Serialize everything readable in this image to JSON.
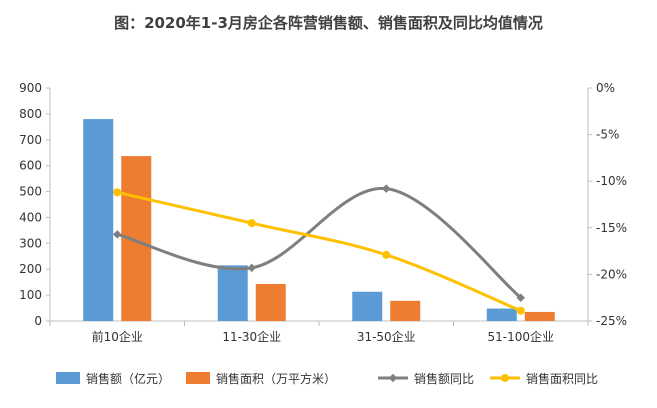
{
  "chart_data": {
    "type": "bar",
    "title": "图：2020年1-3月房企各阵营销售额、销售面积及同比均值情况",
    "categories": [
      "前10企业",
      "11-30企业",
      "31-50企业",
      "51-100企业"
    ],
    "series": [
      {
        "name": "销售额（亿元）",
        "type": "bar",
        "axis": "left",
        "color": "#5B9BD5",
        "values": [
          780,
          215,
          113,
          48
        ]
      },
      {
        "name": "销售面积（万平方米）",
        "type": "bar",
        "axis": "left",
        "color": "#ED7D31",
        "values": [
          637,
          143,
          78,
          35
        ]
      },
      {
        "name": "销售额同比",
        "type": "line",
        "axis": "right",
        "color": "#7F7F7F",
        "values": [
          -15.7,
          -19.3,
          -10.8,
          -22.5
        ]
      },
      {
        "name": "销售面积同比",
        "type": "line",
        "axis": "right",
        "color": "#FFC000",
        "values": [
          -11.2,
          -14.5,
          -17.9,
          -23.9
        ]
      }
    ],
    "y_left": {
      "min": 0,
      "max": 900,
      "step": 100,
      "ticks": [
        "0",
        "100",
        "200",
        "300",
        "400",
        "500",
        "600",
        "700",
        "800",
        "900"
      ]
    },
    "y_right": {
      "min": -25,
      "max": 0,
      "step": 5,
      "ticks": [
        "0%",
        "-5%",
        "-10%",
        "-15%",
        "-20%",
        "-25%"
      ]
    },
    "legend_position": "bottom"
  }
}
